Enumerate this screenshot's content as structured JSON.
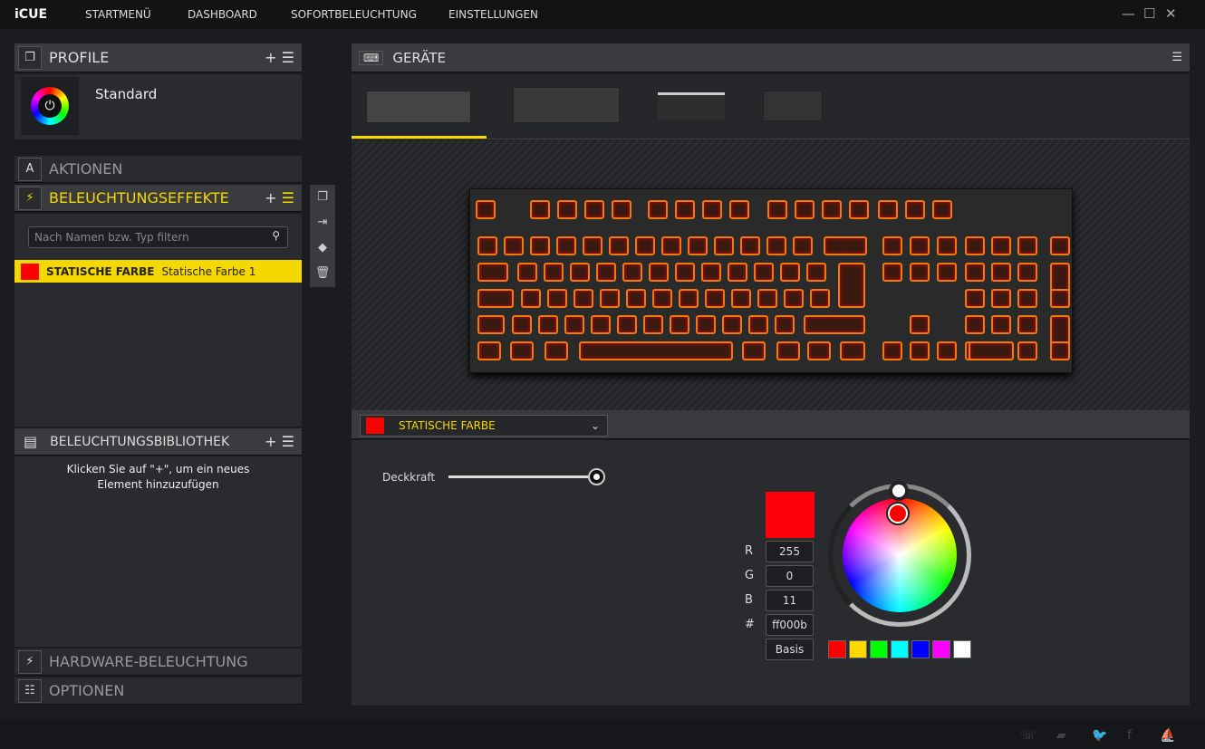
{
  "app": {
    "title": "iCUE",
    "nav": [
      "STARTMENÜ",
      "DASHBOARD",
      "SOFORTBELEUCHTUNG",
      "EINSTELLUNGEN"
    ]
  },
  "profiles": {
    "title": "PROFILE",
    "items": [
      {
        "name": "Standard"
      }
    ]
  },
  "actions": {
    "title": "AKTIONEN"
  },
  "effects": {
    "title": "BELEUCHTUNGSEFFEKTE",
    "search_placeholder": "Nach Namen bzw. Typ filtern",
    "items": [
      {
        "type": "STATISCHE FARBE",
        "name": "Statische Farbe 1",
        "color": "#ff0000"
      }
    ]
  },
  "library": {
    "title": "BELEUCHTUNGSBIBLIOTHEK",
    "empty": "Klicken Sie auf \"+\", um ein neues Element hinzuzufügen"
  },
  "hardware": {
    "title": "HARDWARE-BELEUCHTUNG"
  },
  "options": {
    "title": "OPTIONEN"
  },
  "devices": {
    "title": "GERÄTE",
    "tabs": [
      "keyboard-1",
      "keyboard-2",
      "memory",
      "hub"
    ],
    "selected": 0
  },
  "effect_editor": {
    "type": "STATISCHE FARBE",
    "opacity_label": "Deckkraft",
    "opacity": 100,
    "color": {
      "r": "255",
      "g": "0",
      "b": "11",
      "hex": "ff000b",
      "swatch": "#ff000b"
    },
    "labels": {
      "r": "R",
      "g": "G",
      "b": "B",
      "hex": "#"
    },
    "basis": "Basis",
    "palette": [
      "#ff0000",
      "#ffd800",
      "#00ff00",
      "#00ffff",
      "#0000ff",
      "#ff00ff",
      "#ffffff"
    ]
  },
  "accent": "#f5d800",
  "footer_icons": [
    "support-icon",
    "chat-icon",
    "twitter-icon",
    "facebook-icon",
    "corsair-icon"
  ]
}
